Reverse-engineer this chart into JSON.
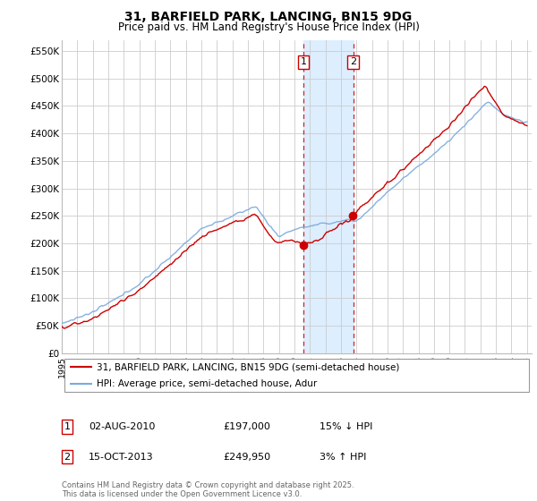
{
  "title": "31, BARFIELD PARK, LANCING, BN15 9DG",
  "subtitle": "Price paid vs. HM Land Registry's House Price Index (HPI)",
  "ylim": [
    0,
    570000
  ],
  "yticks": [
    0,
    50000,
    100000,
    150000,
    200000,
    250000,
    300000,
    350000,
    400000,
    450000,
    500000,
    550000
  ],
  "ytick_labels": [
    "£0",
    "£50K",
    "£100K",
    "£150K",
    "£200K",
    "£250K",
    "£300K",
    "£350K",
    "£400K",
    "£450K",
    "£500K",
    "£550K"
  ],
  "red_color": "#cc0000",
  "blue_color": "#7aaadd",
  "highlight_color": "#ddeeff",
  "dashed_color": "#cc0000",
  "transaction1": {
    "date": "02-AUG-2010",
    "price": 197000,
    "pct": "15% ↓ HPI",
    "label": "1"
  },
  "transaction2": {
    "date": "15-OCT-2013",
    "price": 249950,
    "pct": "3% ↑ HPI",
    "label": "2"
  },
  "legend_line1": "31, BARFIELD PARK, LANCING, BN15 9DG (semi-detached house)",
  "legend_line2": "HPI: Average price, semi-detached house, Adur",
  "footnote": "Contains HM Land Registry data © Crown copyright and database right 2025.\nThis data is licensed under the Open Government Licence v3.0.",
  "background_color": "#ffffff",
  "grid_color": "#cccccc",
  "t1_year": 2010.583,
  "t2_year": 2013.79
}
